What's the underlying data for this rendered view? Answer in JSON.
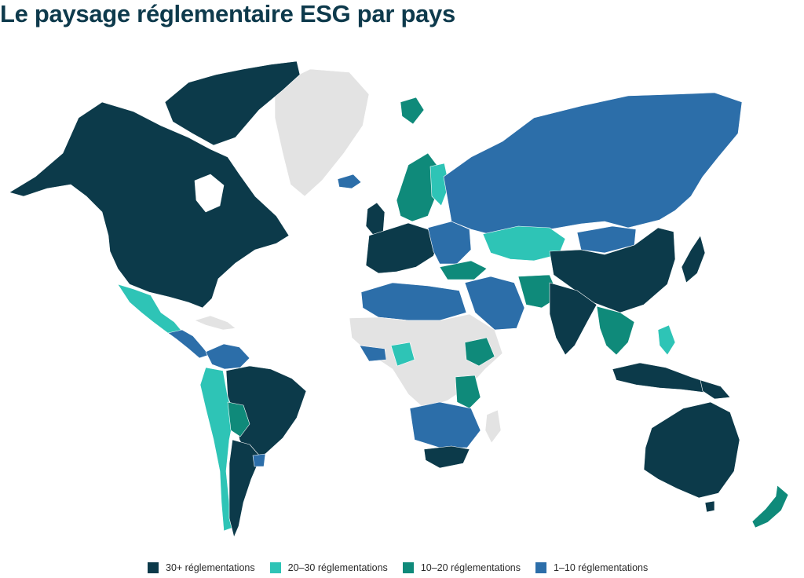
{
  "header": {
    "title": "Le paysage réglementaire ESG par pays"
  },
  "colors": {
    "tier_30_plus": "#0c3a4a",
    "tier_20_30": "#2ec4b6",
    "tier_10_20": "#0f8a7a",
    "tier_1_10": "#2c6ea9",
    "no_data": "#e3e3e3",
    "background": "#ffffff"
  },
  "legend": {
    "items": [
      {
        "label": "30+ réglementations",
        "color": "#0c3a4a"
      },
      {
        "label": "20–30 réglementations",
        "color": "#2ec4b6"
      },
      {
        "label": "10–20 réglementations",
        "color": "#0f8a7a"
      },
      {
        "label": "1–10 réglementations",
        "color": "#2c6ea9"
      }
    ]
  }
}
